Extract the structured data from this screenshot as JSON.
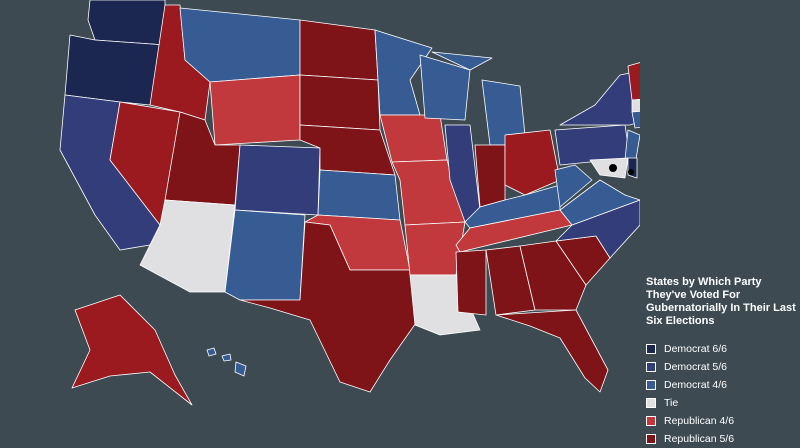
{
  "legend": {
    "title": "States by Which Party They've Voted For Gubernatorially In Their Last Six Elections",
    "items": [
      {
        "label": "Democrat 6/6",
        "color": "#1b2750"
      },
      {
        "label": "Democrat 5/6",
        "color": "#323d7a"
      },
      {
        "label": "Democrat 4/6",
        "color": "#375c93"
      },
      {
        "label": "Tie",
        "color": "#e0e0e2"
      },
      {
        "label": "Republican 4/6",
        "color": "#c1393c"
      },
      {
        "label": "Republican 5/6",
        "color": "#7e1417"
      }
    ]
  }
}
